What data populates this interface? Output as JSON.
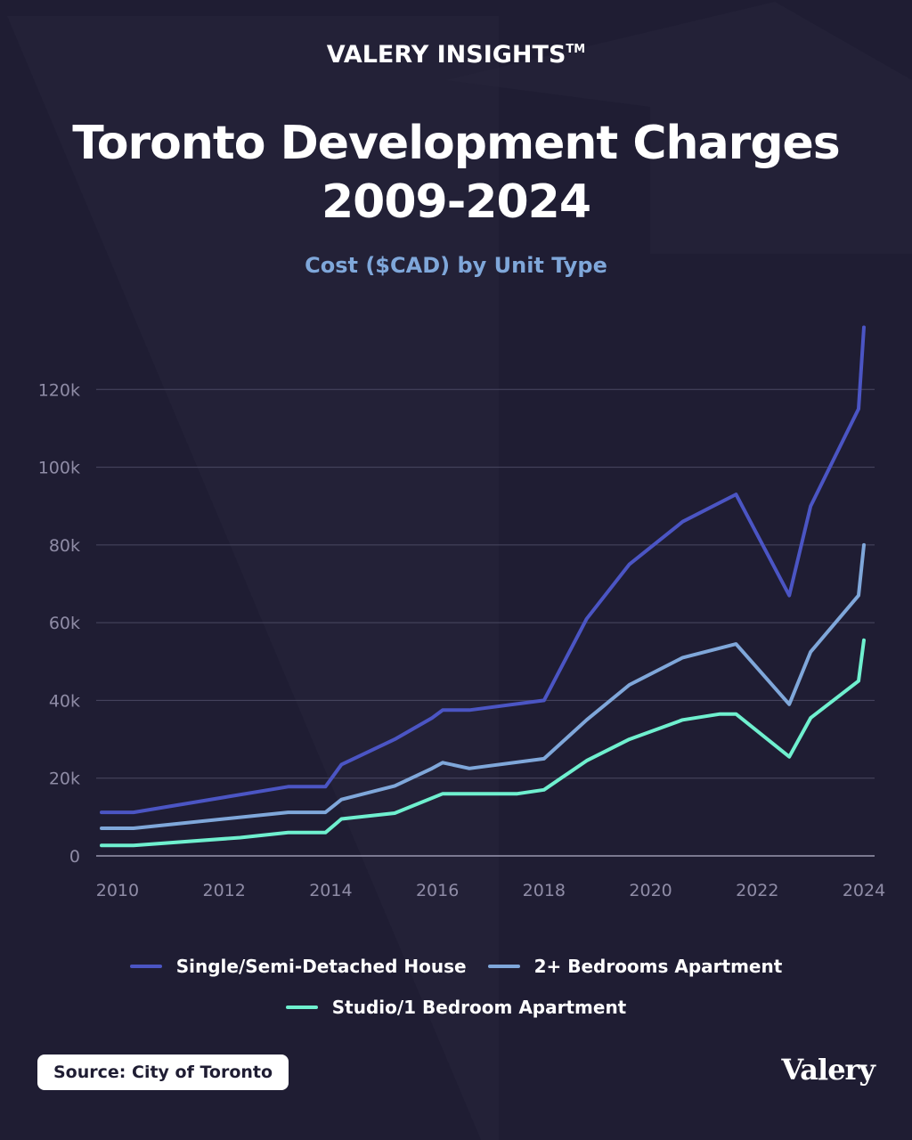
{
  "brand": {
    "name": "VALERY INSIGHTS",
    "tm": "TM"
  },
  "header": {
    "title_line1": "Toronto Development Charges",
    "title_line2": "2009-2024",
    "subtitle": "Cost ($CAD) by Unit Type"
  },
  "footer": {
    "source": "Source: City of Toronto",
    "logo": "Valery"
  },
  "colors": {
    "background": "#1f1d33",
    "grid": "#4a4862",
    "axis_text": "#8f8ca6",
    "house": "#4b55c4",
    "apt2": "#7fa7da",
    "studio": "#6ff0cf"
  },
  "chart_data": {
    "type": "line",
    "title": "Toronto Development Charges 2009-2024",
    "subtitle": "Cost ($CAD) by Unit Type",
    "xlabel": "",
    "ylabel": "",
    "xlim": [
      2009.6,
      2024.2
    ],
    "ylim": [
      0,
      140000
    ],
    "x_ticks": [
      2010,
      2012,
      2014,
      2016,
      2018,
      2020,
      2022,
      2024
    ],
    "x_tick_labels": [
      "2010",
      "2012",
      "2014",
      "2016",
      "2018",
      "2020",
      "2022",
      "2024"
    ],
    "y_ticks": [
      0,
      20000,
      40000,
      60000,
      80000,
      100000,
      120000
    ],
    "y_tick_labels": [
      "0",
      "20k",
      "40k",
      "60k",
      "80k",
      "100k",
      "120k"
    ],
    "grid": true,
    "legend_position": "bottom",
    "series": [
      {
        "name": "Single/Semi-Detached House",
        "color": "#4b55c4",
        "points": [
          [
            2009.7,
            11200
          ],
          [
            2010.3,
            11200
          ],
          [
            2013.2,
            17800
          ],
          [
            2013.9,
            17800
          ],
          [
            2014.2,
            23500
          ],
          [
            2015.2,
            30000
          ],
          [
            2015.9,
            35500
          ],
          [
            2016.1,
            37500
          ],
          [
            2016.6,
            37500
          ],
          [
            2018.0,
            40000
          ],
          [
            2018.8,
            61000
          ],
          [
            2019.6,
            75000
          ],
          [
            2020.6,
            86000
          ],
          [
            2021.6,
            93000
          ],
          [
            2022.6,
            67000
          ],
          [
            2023.0,
            90000
          ],
          [
            2023.9,
            115000
          ],
          [
            2024.0,
            136000
          ]
        ]
      },
      {
        "name": "2+ Bedrooms Apartment",
        "color": "#7fa7da",
        "points": [
          [
            2009.7,
            7100
          ],
          [
            2010.3,
            7100
          ],
          [
            2013.2,
            11200
          ],
          [
            2013.9,
            11200
          ],
          [
            2014.2,
            14500
          ],
          [
            2015.2,
            18000
          ],
          [
            2015.9,
            22500
          ],
          [
            2016.1,
            24000
          ],
          [
            2016.6,
            22500
          ],
          [
            2018.0,
            25000
          ],
          [
            2018.8,
            35000
          ],
          [
            2019.6,
            44000
          ],
          [
            2020.6,
            51000
          ],
          [
            2021.6,
            54500
          ],
          [
            2022.6,
            39000
          ],
          [
            2023.0,
            52500
          ],
          [
            2023.9,
            67000
          ],
          [
            2024.0,
            80000
          ]
        ]
      },
      {
        "name": "Studio/1 Bedroom Apartment",
        "color": "#6ff0cf",
        "points": [
          [
            2009.7,
            2700
          ],
          [
            2010.3,
            2700
          ],
          [
            2012.3,
            4700
          ],
          [
            2013.2,
            6000
          ],
          [
            2013.9,
            6000
          ],
          [
            2014.2,
            9500
          ],
          [
            2015.2,
            11000
          ],
          [
            2016.1,
            16000
          ],
          [
            2016.6,
            16000
          ],
          [
            2017.5,
            16000
          ],
          [
            2018.0,
            17000
          ],
          [
            2018.8,
            24500
          ],
          [
            2019.6,
            30000
          ],
          [
            2020.6,
            35000
          ],
          [
            2021.3,
            36500
          ],
          [
            2021.6,
            36500
          ],
          [
            2022.6,
            25500
          ],
          [
            2023.0,
            35500
          ],
          [
            2023.9,
            45000
          ],
          [
            2024.0,
            55500
          ]
        ]
      }
    ]
  }
}
